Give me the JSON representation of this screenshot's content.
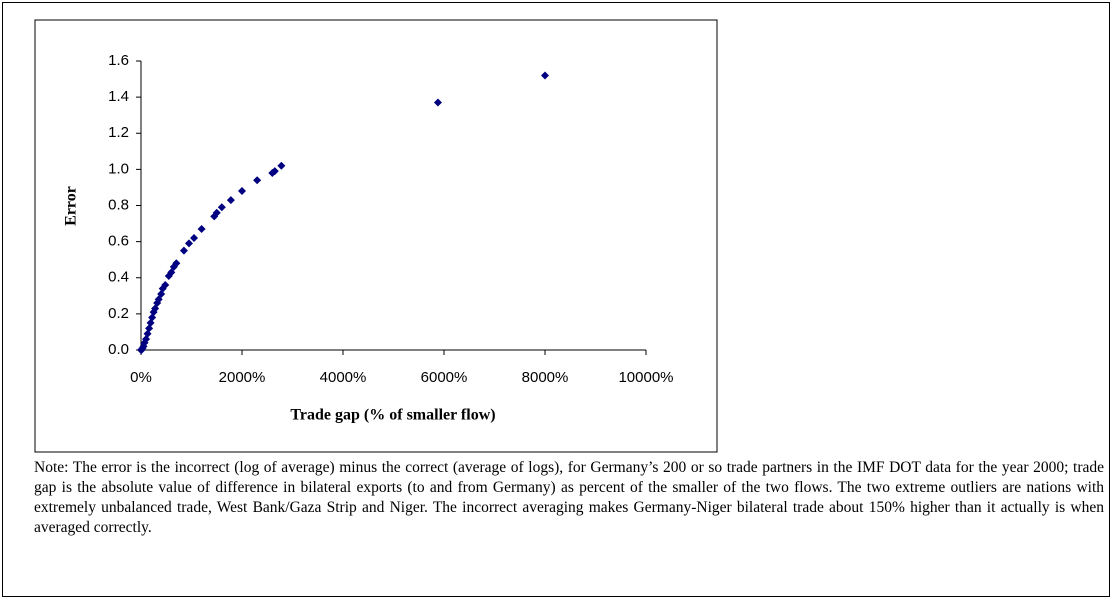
{
  "chart_data": {
    "type": "scatter",
    "xlabel": "Trade gap (% of smaller flow)",
    "ylabel": "Error",
    "color": "#000080",
    "x": [
      0,
      10,
      30,
      50,
      70,
      100,
      130,
      160,
      190,
      220,
      250,
      280,
      320,
      350,
      400,
      430,
      480,
      550,
      600,
      650,
      700,
      850,
      950,
      1050,
      1200,
      1450,
      1500,
      1600,
      1780,
      2000,
      2300,
      2600,
      2650,
      2780,
      5880,
      8000
    ],
    "values": [
      0.0,
      0.0,
      0.01,
      0.02,
      0.04,
      0.06,
      0.09,
      0.12,
      0.15,
      0.18,
      0.21,
      0.23,
      0.26,
      0.28,
      0.31,
      0.34,
      0.36,
      0.41,
      0.43,
      0.46,
      0.48,
      0.55,
      0.59,
      0.62,
      0.67,
      0.74,
      0.76,
      0.79,
      0.83,
      0.88,
      0.94,
      0.98,
      0.99,
      1.02,
      1.37,
      1.52
    ],
    "xlim": [
      0,
      10000
    ],
    "ylim": [
      0,
      1.6
    ],
    "xticks": [
      {
        "value": 0,
        "label": "0%"
      },
      {
        "value": 2000,
        "label": "2000%"
      },
      {
        "value": 4000,
        "label": "4000%"
      },
      {
        "value": 6000,
        "label": "6000%"
      },
      {
        "value": 8000,
        "label": "8000%"
      },
      {
        "value": 10000,
        "label": "10000%"
      }
    ],
    "yticks": [
      {
        "value": 0,
        "label": "0.0"
      },
      0.2,
      0.4,
      0.6,
      0.8,
      {
        "value": 1,
        "label": "1.0"
      },
      1.2,
      1.4,
      1.6
    ],
    "grid": false
  },
  "note": "Note: The error is the incorrect (log of average) minus the correct (average of logs), for Germany’s 200 or so trade partners in the IMF DOT data for the year 2000; trade gap is the absolute value of difference in bilateral exports (to and from Germany) as percent of the smaller of the two flows. The two extreme outliers are nations with extremely unbalanced trade, West Bank/Gaza Strip and Niger. The incorrect averaging makes Germany-Niger bilateral trade about 150% higher than it actually is when averaged correctly."
}
